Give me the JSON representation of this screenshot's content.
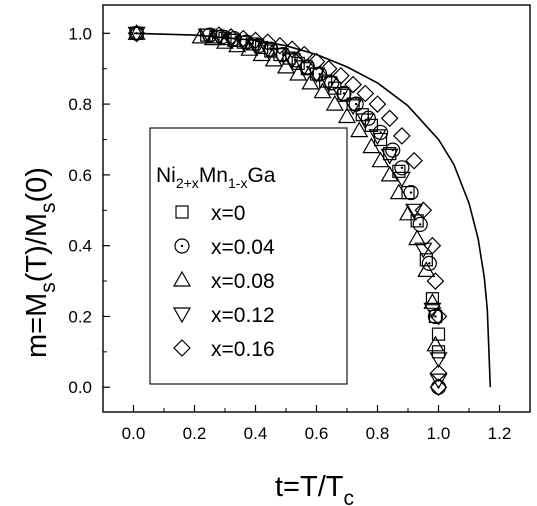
{
  "chart_data": {
    "type": "scatter",
    "xlabel": {
      "main": "t=T/T",
      "sub": "c"
    },
    "ylabel": {
      "p1": "m=M",
      "s1": "s",
      "p2": "(T)/M",
      "s2": "s",
      "p3": "(0)"
    },
    "xlim": [
      -0.1,
      1.3
    ],
    "ylim": [
      -0.07,
      1.08
    ],
    "xticks": [
      0.0,
      0.2,
      0.4,
      0.6,
      0.8,
      1.0,
      1.2
    ],
    "xtick_labels": [
      "0.0",
      "0.2",
      "0.4",
      "0.6",
      "0.8",
      "1.0",
      "1.2"
    ],
    "yticks": [
      0.0,
      0.2,
      0.4,
      0.6,
      0.8,
      1.0
    ],
    "ytick_labels": [
      "0.0",
      "0.2",
      "0.4",
      "0.6",
      "0.8",
      "1.0"
    ],
    "grid": false,
    "legend": {
      "title": {
        "el1": "Ni",
        "sub1": "2+x",
        "el2": "Mn",
        "sub2": "1-x",
        "el3": "Ga"
      },
      "placement": "center-left"
    },
    "series": [
      {
        "name": "x=0",
        "marker": "square",
        "x": [
          0.01,
          0.24,
          0.27,
          0.3,
          0.33,
          0.36,
          0.39,
          0.42,
          0.45,
          0.48,
          0.51,
          0.54,
          0.57,
          0.6,
          0.63,
          0.66,
          0.69,
          0.72,
          0.75,
          0.78,
          0.81,
          0.84,
          0.87,
          0.9,
          0.93,
          0.96,
          0.98,
          0.99,
          1.0,
          1.0
        ],
        "y": [
          1.0,
          0.995,
          0.99,
          0.985,
          0.98,
          0.975,
          0.97,
          0.96,
          0.95,
          0.94,
          0.93,
          0.915,
          0.9,
          0.885,
          0.865,
          0.845,
          0.825,
          0.8,
          0.77,
          0.74,
          0.7,
          0.66,
          0.61,
          0.55,
          0.47,
          0.36,
          0.25,
          0.2,
          0.15,
          0.1
        ]
      },
      {
        "name": "x=0.04",
        "marker": "circle",
        "x": [
          0.01,
          0.25,
          0.29,
          0.33,
          0.37,
          0.41,
          0.45,
          0.49,
          0.53,
          0.57,
          0.61,
          0.65,
          0.69,
          0.73,
          0.77,
          0.81,
          0.85,
          0.88,
          0.91,
          0.94,
          0.97,
          0.99,
          1.0
        ],
        "y": [
          1.0,
          0.995,
          0.99,
          0.985,
          0.975,
          0.965,
          0.955,
          0.94,
          0.925,
          0.905,
          0.885,
          0.86,
          0.83,
          0.8,
          0.76,
          0.72,
          0.67,
          0.62,
          0.55,
          0.46,
          0.35,
          0.2,
          0.0
        ]
      },
      {
        "name": "x=0.08",
        "marker": "triangle-up",
        "x": [
          0.01,
          0.22,
          0.26,
          0.3,
          0.34,
          0.38,
          0.42,
          0.46,
          0.5,
          0.54,
          0.58,
          0.62,
          0.66,
          0.7,
          0.74,
          0.78,
          0.81,
          0.84,
          0.87,
          0.9,
          0.93,
          0.96,
          0.98,
          0.99
        ],
        "y": [
          1.0,
          0.99,
          0.985,
          0.975,
          0.965,
          0.955,
          0.94,
          0.925,
          0.905,
          0.885,
          0.86,
          0.835,
          0.8,
          0.765,
          0.725,
          0.68,
          0.64,
          0.6,
          0.55,
          0.49,
          0.42,
          0.33,
          0.24,
          0.12
        ]
      },
      {
        "name": "x=0.12",
        "marker": "triangle-down",
        "x": [
          0.01,
          0.24,
          0.28,
          0.32,
          0.36,
          0.4,
          0.44,
          0.48,
          0.52,
          0.56,
          0.6,
          0.64,
          0.68,
          0.72,
          0.76,
          0.8,
          0.84,
          0.88,
          0.92,
          0.95,
          0.98,
          1.0,
          1.0
        ],
        "y": [
          1.0,
          0.995,
          0.99,
          0.98,
          0.975,
          0.965,
          0.955,
          0.94,
          0.925,
          0.905,
          0.885,
          0.86,
          0.83,
          0.795,
          0.755,
          0.71,
          0.655,
          0.59,
          0.5,
          0.39,
          0.22,
          0.08,
          0.02
        ]
      },
      {
        "name": "x=0.16",
        "marker": "diamond",
        "x": [
          0.01,
          0.28,
          0.32,
          0.36,
          0.4,
          0.44,
          0.48,
          0.52,
          0.56,
          0.6,
          0.64,
          0.68,
          0.72,
          0.76,
          0.8,
          0.84,
          0.88,
          0.92,
          0.95,
          0.98,
          0.99,
          1.0,
          1.0,
          1.0
        ],
        "y": [
          1.0,
          0.995,
          0.99,
          0.985,
          0.98,
          0.975,
          0.965,
          0.955,
          0.94,
          0.92,
          0.9,
          0.88,
          0.855,
          0.83,
          0.8,
          0.76,
          0.71,
          0.64,
          0.5,
          0.4,
          0.3,
          0.2,
          0.04,
          0.0
        ]
      }
    ],
    "curve": {
      "name": "",
      "x": [
        0.0,
        0.2,
        0.4,
        0.5,
        0.6,
        0.7,
        0.8,
        0.9,
        1.0,
        1.05,
        1.1,
        1.13,
        1.15,
        1.16,
        1.17
      ],
      "y": [
        1.0,
        0.995,
        0.98,
        0.965,
        0.94,
        0.905,
        0.86,
        0.795,
        0.7,
        0.63,
        0.52,
        0.42,
        0.31,
        0.22,
        0.0
      ]
    }
  }
}
